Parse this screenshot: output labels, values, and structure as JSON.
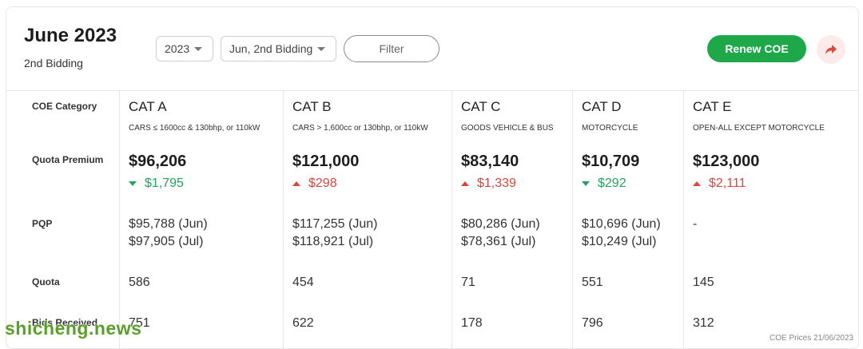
{
  "header": {
    "title": "June 2023",
    "subtitle": "2nd Bidding",
    "year_select": "2023",
    "bidding_select": "Jun, 2nd Bidding",
    "filter_label": "Filter",
    "renew_label": "Renew COE",
    "share_icon": "share-arrow-icon"
  },
  "labels": {
    "category": "COE Category",
    "premium": "Quota Premium",
    "pqp": "PQP",
    "quota": "Quota",
    "bids": "Bids Received"
  },
  "categories": [
    {
      "name": "CAT A",
      "desc": "CARS ≤ 1600cc & 130bhp, or 110kW",
      "premium": "$96,206",
      "change": "$1,795",
      "direction": "down",
      "pqp1": "$95,788 (Jun)",
      "pqp2": "$97,905 (Jul)",
      "quota": "586",
      "bids": "751"
    },
    {
      "name": "CAT B",
      "desc": "CARS > 1,600cc or 130bhp, or 110kW",
      "premium": "$121,000",
      "change": "$298",
      "direction": "up",
      "pqp1": "$117,255 (Jun)",
      "pqp2": "$118,921 (Jul)",
      "quota": "454",
      "bids": "622"
    },
    {
      "name": "CAT C",
      "desc": "GOODS VEHICLE & BUS",
      "premium": "$83,140",
      "change": "$1,339",
      "direction": "up",
      "pqp1": "$80,286 (Jun)",
      "pqp2": "$78,361 (Jul)",
      "quota": "71",
      "bids": "178"
    },
    {
      "name": "CAT D",
      "desc": "MOTORCYCLE",
      "premium": "$10,709",
      "change": "$292",
      "direction": "down",
      "pqp1": "$10,696 (Jun)",
      "pqp2": "$10,249 (Jul)",
      "quota": "551",
      "bids": "796"
    },
    {
      "name": "CAT E",
      "desc": "OPEN-ALL EXCEPT MOTORCYCLE",
      "premium": "$123,000",
      "change": "$2,111",
      "direction": "up",
      "pqp1": "-",
      "pqp2": "",
      "quota": "145",
      "bids": "312"
    }
  ],
  "footer": "COE Prices 21/06/2023",
  "watermark": "shicheng.news",
  "colors": {
    "accent_green": "#1fa84a",
    "down_green": "#22a45d",
    "up_red": "#d9463e"
  }
}
